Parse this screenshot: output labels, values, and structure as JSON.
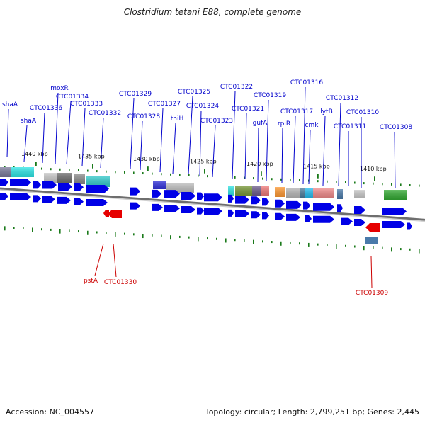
{
  "title": "Clostridium tetani E88, complete genome",
  "footer": {
    "accession": "Accession: NC_004557",
    "topology": "Topology: circular; Length: 2,799,251 bp; Genes: 2,445"
  },
  "colors": {
    "forward_gene": "#0000e6",
    "reverse_gene": "#e60000",
    "backbone": "#999999",
    "tick": "#1a7a1a",
    "label_forward": "#0000cc",
    "label_reverse": "#cc0000"
  },
  "kbp_ticks": [
    "1440 kbp",
    "1435 kbp",
    "1430 kbp",
    "1425 kbp",
    "1420 kbp",
    "1415 kbp",
    "1410 kbp"
  ],
  "forward_labels": [
    "shaA",
    "shaA",
    "CTC01336",
    "moxR",
    "CTC01334",
    "CTC01333",
    "CTC01332",
    "CTC01329",
    "CTC01328",
    "CTC01327",
    "thiH",
    "CTC01325",
    "CTC01324",
    "CTC01323",
    "CTC01322",
    "CTC01321",
    "CTC01319",
    "gufA",
    "rpiR",
    "CTC01317",
    "CTC01316",
    "cmk",
    "lytB",
    "CTC01312",
    "CTC01311",
    "CTC01310",
    "CTC01308"
  ],
  "reverse_labels": [
    "pstA",
    "CTC01330",
    "CTC01309"
  ]
}
